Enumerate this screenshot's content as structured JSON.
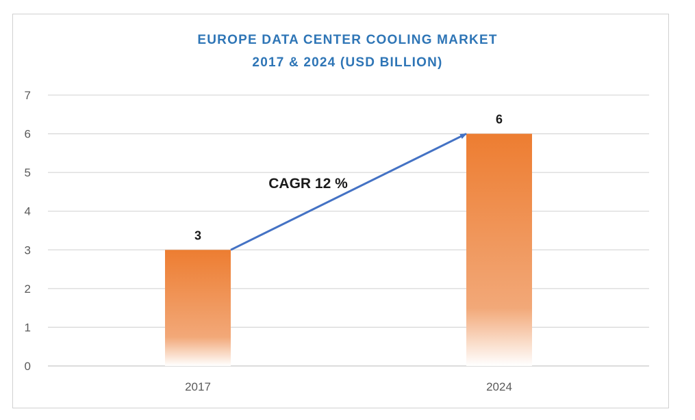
{
  "chart_data": {
    "type": "bar",
    "title_lines": [
      "EUROPE DATA CENTER COOLING MARKET",
      "2017 & 2024 (USD BILLION)"
    ],
    "categories": [
      "2017",
      "2024"
    ],
    "values": [
      3,
      6
    ],
    "data_labels": [
      "3",
      "6"
    ],
    "ylim": [
      0,
      7
    ],
    "yticks": [
      "0",
      "1",
      "2",
      "3",
      "4",
      "5",
      "6",
      "7"
    ],
    "grid": true,
    "legend": "none",
    "annotation": "CAGR 12 %",
    "colors": {
      "bar": "#ed7d31",
      "arrow": "#4472c4",
      "title": "#2e75b6",
      "grid": "#d9d9d9"
    }
  }
}
